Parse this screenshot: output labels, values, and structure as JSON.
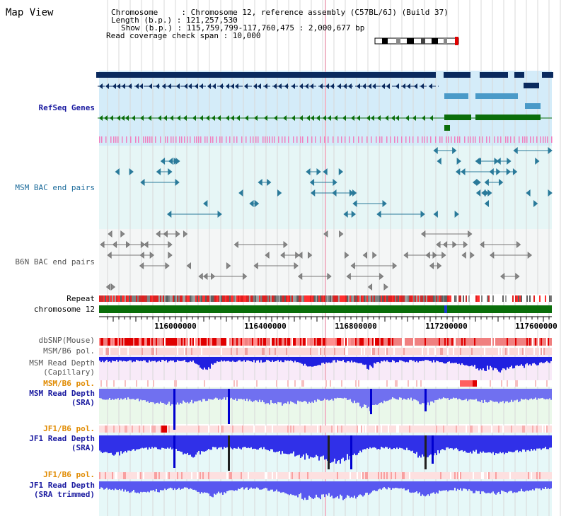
{
  "title": "Map View",
  "info": {
    "chromosome_line": "Chromosome     : Chromosome 12, reference assembly (C57BL/6J) (Build 37)",
    "length_line": "Length (b.p.) : 121,257,530",
    "show_line": "Show (b.p.) : 115,759,799-117,760,475 : 2,000,677 bp",
    "coverage_line": "Read coverage check span : 10,000"
  },
  "tracks": {
    "refseq": "RefSeq Genes",
    "msm_bac": "MSM BAC end pairs",
    "b6n_bac": "B6N BAC end pairs",
    "repeat": "Repeat",
    "chromosome": "chromosome 12",
    "dbsnp": "dbSNP(Mouse)",
    "msm_b6_pol_1": "MSM/B6 pol.",
    "msm_depth_cap_1": "MSM Read Depth",
    "msm_depth_cap_2": "(Capillary)",
    "msm_b6_pol_2": "MSM/B6 pol.",
    "msm_depth_sra_1": "MSM Read Depth",
    "msm_depth_sra_2": "(SRA)",
    "jf1_b6_pol_1": "JF1/B6 pol.",
    "jf1_depth_sra_1": "JF1 Read Depth",
    "jf1_depth_sra_2": "(SRA)",
    "jf1_b6_pol_2": "JF1/B6 pol.",
    "jf1_depth_trim_1": "JF1 Read Depth",
    "jf1_depth_trim_2": "(SRA trimmed)"
  },
  "axis": {
    "ticks": [
      "116000000",
      "116400000",
      "116800000",
      "117200000",
      "117600000"
    ]
  },
  "colors": {
    "navy": "#0a2a5e",
    "refseq_bg": "#d4ecf9",
    "bac_bg": "#e6f6f6",
    "b6n_bg": "#f2f5f5",
    "green": "#0a6e0a",
    "depth_blue": "#2020e0",
    "orange_label": "#e08a00"
  }
}
